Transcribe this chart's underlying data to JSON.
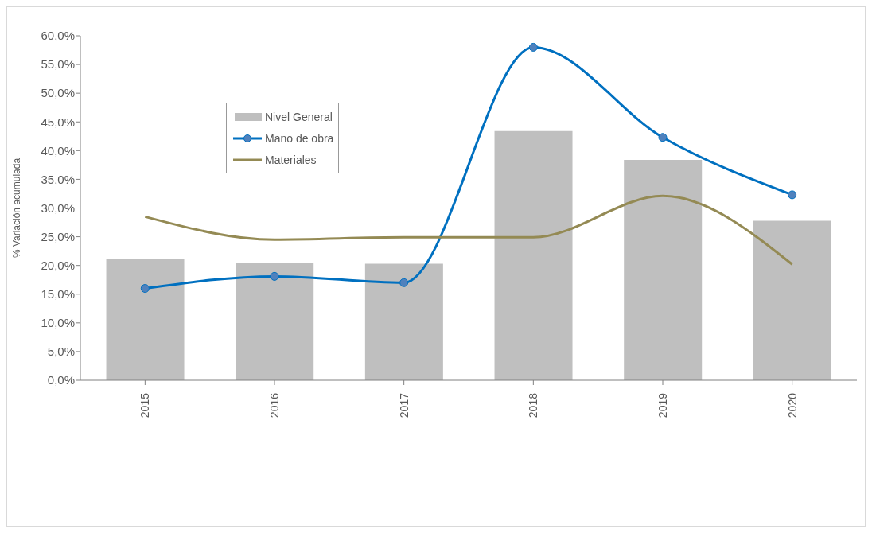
{
  "chart_data": {
    "type": "bar",
    "ylabel": "% Variación acumulada",
    "categories": [
      "2015",
      "2016",
      "2017",
      "2018",
      "2019",
      "2020"
    ],
    "series": [
      {
        "name": "Nivel General",
        "color": "#bfbfbf",
        "values": [
          21.1,
          20.5,
          20.3,
          43.4,
          38.4,
          27.8
        ]
      },
      {
        "name": "Mano de obra",
        "type": "line",
        "color": "#0070c0",
        "marker": "circle",
        "values": [
          16.0,
          18.1,
          17.0,
          58.0,
          42.3,
          32.3
        ]
      },
      {
        "name": "Materiales",
        "type": "line",
        "color": "#948a54",
        "marker": "none",
        "values": [
          28.5,
          24.5,
          24.9,
          24.9,
          32.1,
          20.2
        ]
      }
    ],
    "ylim": [
      0,
      60
    ],
    "yticks": [
      {
        "value": 0,
        "label": "0,0%"
      },
      {
        "value": 5,
        "label": "5,0%"
      },
      {
        "value": 10,
        "label": "10,0%"
      },
      {
        "value": 15,
        "label": "15,0%"
      },
      {
        "value": 20,
        "label": "20,0%"
      },
      {
        "value": 25,
        "label": "25,0%"
      },
      {
        "value": 30,
        "label": "30,0%"
      },
      {
        "value": 35,
        "label": "35,0%"
      },
      {
        "value": 40,
        "label": "40,0%"
      },
      {
        "value": 45,
        "label": "45,0%"
      },
      {
        "value": 50,
        "label": "50,0%"
      },
      {
        "value": 55,
        "label": "55,0%"
      },
      {
        "value": 60,
        "label": "60,0%"
      }
    ],
    "grid": false,
    "legend": "top left",
    "line_style": "solid"
  }
}
